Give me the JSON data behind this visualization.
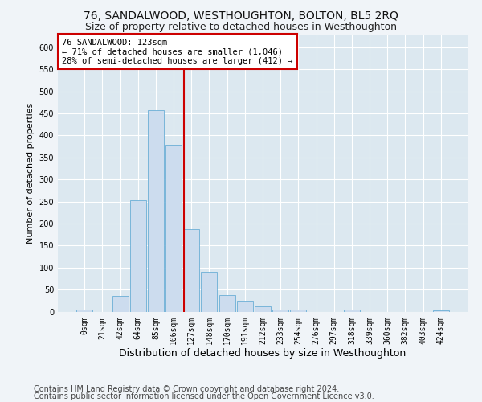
{
  "title": "76, SANDALWOOD, WESTHOUGHTON, BOLTON, BL5 2RQ",
  "subtitle": "Size of property relative to detached houses in Westhoughton",
  "xlabel": "Distribution of detached houses by size in Westhoughton",
  "ylabel": "Number of detached properties",
  "bar_labels": [
    "0sqm",
    "21sqm",
    "42sqm",
    "64sqm",
    "85sqm",
    "106sqm",
    "127sqm",
    "148sqm",
    "170sqm",
    "191sqm",
    "212sqm",
    "233sqm",
    "254sqm",
    "276sqm",
    "297sqm",
    "318sqm",
    "339sqm",
    "360sqm",
    "382sqm",
    "403sqm",
    "424sqm"
  ],
  "bar_values": [
    5,
    0,
    35,
    253,
    457,
    378,
    188,
    90,
    37,
    22,
    12,
    5,
    5,
    0,
    0,
    5,
    0,
    0,
    0,
    0,
    3
  ],
  "bar_color": "#ccdcee",
  "bar_edge_color": "#6aaed6",
  "vline_x_index": 5.57,
  "vline_color": "#cc0000",
  "annotation_text": "76 SANDALWOOD: 123sqm\n← 71% of detached houses are smaller (1,046)\n28% of semi-detached houses are larger (412) →",
  "annotation_box_facecolor": "#ffffff",
  "annotation_box_edgecolor": "#cc0000",
  "ylim": [
    0,
    630
  ],
  "yticks": [
    0,
    50,
    100,
    150,
    200,
    250,
    300,
    350,
    400,
    450,
    500,
    550,
    600
  ],
  "fig_facecolor": "#f0f4f8",
  "plot_facecolor": "#dce8f0",
  "grid_color": "#ffffff",
  "title_fontsize": 10,
  "subtitle_fontsize": 9,
  "ylabel_fontsize": 8,
  "xlabel_fontsize": 9,
  "tick_fontsize": 7,
  "annotation_fontsize": 7.5,
  "footer_fontsize": 7,
  "footer_line1": "Contains HM Land Registry data © Crown copyright and database right 2024.",
  "footer_line2": "Contains public sector information licensed under the Open Government Licence v3.0."
}
